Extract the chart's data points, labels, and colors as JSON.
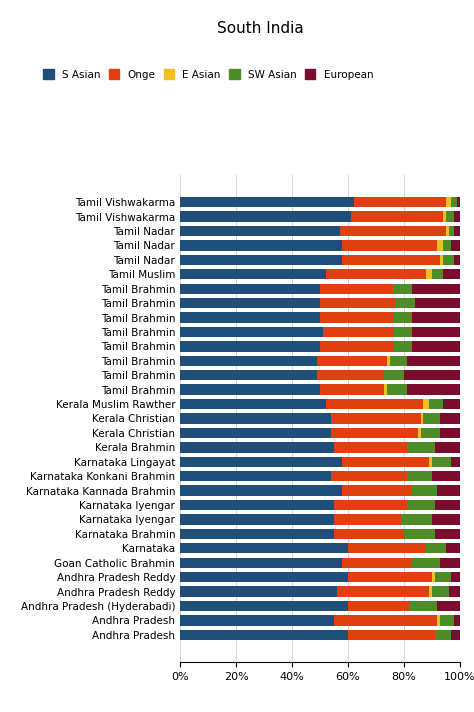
{
  "title": "South India",
  "categories": [
    "Tamil Vishwakarma",
    "Tamil Vishwakarma",
    "Tamil Nadar",
    "Tamil Nadar",
    "Tamil Nadar",
    "Tamil Muslim",
    "Tamil Brahmin",
    "Tamil Brahmin",
    "Tamil Brahmin",
    "Tamil Brahmin",
    "Tamil Brahmin",
    "Tamil Brahmin",
    "Tamil Brahmin",
    "Tamil Brahmin",
    "Kerala Muslim Rawther",
    "Kerala Christian",
    "Kerala Christian",
    "Kerala Brahmin",
    "Karnataka Lingayat",
    "Karnataka Konkani Brahmin",
    "Karnataka Kannada Brahmin",
    "Karnataka Iyengar",
    "Karnataka Iyengar",
    "Karnataka Brahmin",
    "Karnataka",
    "Goan Catholic Brahmin",
    "Andhra Pradesh Reddy",
    "Andhra Pradesh Reddy",
    "Andhra Pradesh (Hyderabadi)",
    "Andhra Pradesh",
    "Andhra Pradesh"
  ],
  "s_asian": [
    0.62,
    0.61,
    0.57,
    0.58,
    0.58,
    0.52,
    0.5,
    0.5,
    0.5,
    0.51,
    0.5,
    0.49,
    0.49,
    0.5,
    0.52,
    0.54,
    0.54,
    0.55,
    0.58,
    0.54,
    0.58,
    0.55,
    0.55,
    0.55,
    0.6,
    0.58,
    0.6,
    0.56,
    0.6,
    0.55,
    0.6
  ],
  "onge": [
    0.33,
    0.33,
    0.38,
    0.34,
    0.35,
    0.36,
    0.26,
    0.27,
    0.26,
    0.25,
    0.26,
    0.25,
    0.24,
    0.23,
    0.35,
    0.32,
    0.31,
    0.26,
    0.31,
    0.27,
    0.25,
    0.26,
    0.24,
    0.25,
    0.28,
    0.25,
    0.3,
    0.33,
    0.22,
    0.37,
    0.31
  ],
  "e_asian": [
    0.02,
    0.01,
    0.01,
    0.02,
    0.01,
    0.02,
    0.0,
    0.0,
    0.0,
    0.0,
    0.0,
    0.01,
    0.0,
    0.01,
    0.02,
    0.01,
    0.01,
    0.0,
    0.01,
    0.0,
    0.0,
    0.0,
    0.0,
    0.0,
    0.0,
    0.0,
    0.01,
    0.01,
    0.0,
    0.01,
    0.0
  ],
  "sw_asian": [
    0.02,
    0.03,
    0.02,
    0.03,
    0.04,
    0.04,
    0.07,
    0.07,
    0.07,
    0.07,
    0.07,
    0.06,
    0.07,
    0.07,
    0.05,
    0.06,
    0.07,
    0.1,
    0.07,
    0.09,
    0.09,
    0.1,
    0.11,
    0.11,
    0.07,
    0.1,
    0.06,
    0.06,
    0.1,
    0.05,
    0.06
  ],
  "european": [
    0.01,
    0.02,
    0.02,
    0.03,
    0.02,
    0.06,
    0.17,
    0.16,
    0.17,
    0.17,
    0.17,
    0.19,
    0.2,
    0.19,
    0.06,
    0.07,
    0.07,
    0.09,
    0.03,
    0.1,
    0.08,
    0.09,
    0.1,
    0.09,
    0.05,
    0.07,
    0.03,
    0.04,
    0.08,
    0.02,
    0.03
  ],
  "colors": {
    "s_asian": "#1F4E79",
    "onge": "#E04010",
    "e_asian": "#F0C020",
    "sw_asian": "#4E8C2A",
    "european": "#7B0C2E"
  },
  "legend_labels": [
    "S Asian",
    "Onge",
    "E Asian",
    "SW Asian",
    "European"
  ],
  "figsize": [
    4.74,
    7.12
  ],
  "dpi": 100
}
